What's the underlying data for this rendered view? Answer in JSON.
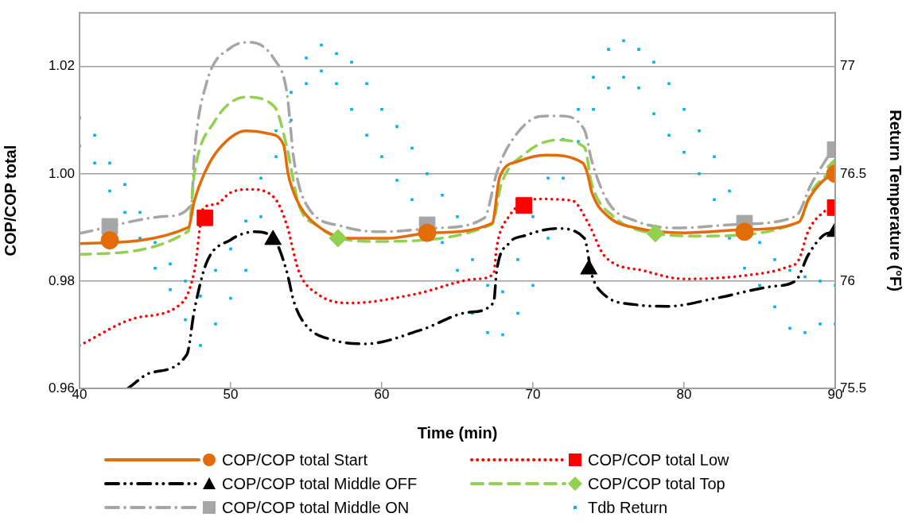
{
  "chart_data": {
    "type": "line",
    "xlabel": "Time (min)",
    "ylabel": "COP/COP total",
    "y2label": "Return Temperature (°F)",
    "xlim": [
      40,
      90
    ],
    "xticks": [
      40,
      50,
      60,
      70,
      80,
      90
    ],
    "ylim": [
      0.96,
      1.03
    ],
    "yticks": [
      0.96,
      0.98,
      {
        "value": 1,
        "label": "1.00"
      },
      1.02
    ],
    "y2lim": [
      75.5,
      77.25
    ],
    "y2ticks": [
      75.5,
      76,
      76.5,
      77
    ],
    "grid": "y",
    "legend": "bottom",
    "series": [
      {
        "name": "COP/COP total Start",
        "type": "line",
        "color": "#e36c09",
        "line_style": "solid",
        "marker": "none",
        "x": [
          40,
          47.2,
          47.6,
          48.5,
          49.5,
          51,
          52.5,
          53.5,
          53.8,
          54.4,
          55.3,
          57.9,
          60.5,
          63.2,
          67.3,
          67.8,
          69,
          70.9,
          73.3,
          73.6,
          73.9,
          75,
          77,
          80,
          84,
          87.6,
          88.2,
          89.2,
          89.9
        ],
        "values": [
          0.987,
          0.99,
          0.995,
          1.0015,
          1.0055,
          1.008,
          1.0075,
          1.0054,
          1.0,
          0.995,
          0.9914,
          0.988,
          0.988,
          0.989,
          0.9908,
          0.9994,
          1.0023,
          1.0035,
          1.002,
          1.0001,
          0.9965,
          0.992,
          0.9898,
          0.989,
          0.9896,
          0.991,
          0.995,
          0.9987,
          1.0
        ]
      },
      {
        "name": "COP/COP total Low",
        "type": "line",
        "color": "#ff0000",
        "line_style": "dotted",
        "marker": "none",
        "x": [
          40,
          43.7,
          46.8,
          47.6,
          48.2,
          49,
          50,
          51.3,
          52.9,
          53.7,
          54.5,
          55.8,
          57.9,
          62.1,
          66.3,
          67.4,
          67.6,
          68.4,
          70.5,
          72.6,
          73.7,
          74.7,
          77.4,
          80,
          84.2,
          86.8,
          87.6,
          88.2,
          89.2,
          89.9
        ],
        "values": [
          0.968,
          0.9731,
          0.976,
          0.9819,
          0.9936,
          0.9943,
          0.9965,
          0.9971,
          0.9955,
          0.9906,
          0.9819,
          0.9775,
          0.9759,
          0.9775,
          0.9804,
          0.9814,
          0.9863,
          0.992,
          0.9953,
          0.995,
          0.9906,
          0.9848,
          0.9819,
          0.9804,
          0.9811,
          0.9826,
          0.984,
          0.9892,
          0.9928,
          0.9937
        ]
      },
      {
        "name": "COP/COP total Middle OFF",
        "type": "line",
        "color": "#000000",
        "line_style": "dashdotdot",
        "marker": "none",
        "x": [
          43.2,
          44.7,
          47.1,
          47.6,
          48.4,
          50,
          51.6,
          52.9,
          53.7,
          54.2,
          55,
          56.8,
          58.9,
          62.6,
          65.8,
          67.4,
          67.6,
          68.4,
          69.5,
          71.6,
          73.4,
          73.9,
          74.7,
          76.8,
          78.9,
          82.1,
          85.8,
          87.4,
          88.2,
          89.2,
          89.9
        ],
        "values": [
          0.96,
          0.9629,
          0.9663,
          0.9746,
          0.9834,
          0.9877,
          0.9892,
          0.9877,
          0.9819,
          0.976,
          0.9717,
          0.969,
          0.9683,
          0.9709,
          0.9742,
          0.976,
          0.9819,
          0.987,
          0.9885,
          0.9898,
          0.988,
          0.9811,
          0.9775,
          0.9756,
          0.9753,
          0.9768,
          0.979,
          0.9801,
          0.9848,
          0.9885,
          0.9892
        ]
      },
      {
        "name": "COP/COP total Top",
        "type": "line",
        "color": "#92d050",
        "line_style": "dashed",
        "marker": "none",
        "x": [
          40,
          47.2,
          47.6,
          48.9,
          51,
          52.9,
          53.7,
          54.5,
          55.8,
          57.2,
          59.5,
          67.3,
          67.9,
          69.5,
          71.6,
          73.4,
          73.9,
          75.3,
          78,
          81.1,
          87.6,
          88.4,
          89.9
        ],
        "values": [
          0.985,
          0.9893,
          1.0001,
          1.0096,
          1.0143,
          1.0125,
          1.0052,
          0.9943,
          0.9902,
          0.988,
          0.9874,
          0.9906,
          0.998,
          1.0038,
          1.0063,
          1.005,
          0.998,
          0.9921,
          0.9889,
          0.9884,
          0.991,
          0.9965,
          1.0009
        ]
      },
      {
        "name": "COP/COP total Middle ON",
        "type": "line",
        "color": "#a6a6a6",
        "line_style": "dashdot",
        "marker": "none",
        "x": [
          40,
          45.8,
          47.4,
          47.6,
          48.4,
          50,
          51.3,
          52.9,
          53.7,
          54.2,
          55,
          57.4,
          60,
          63.7,
          66.8,
          67.6,
          68.4,
          70.5,
          71.8,
          73.4,
          73.9,
          75,
          76.8,
          79.5,
          83.7,
          87.4,
          88.4,
          89.7
        ],
        "values": [
          0.9889,
          0.9921,
          0.9943,
          1.0038,
          1.0169,
          1.0235,
          1.0245,
          1.0213,
          1.0155,
          1.0023,
          0.9943,
          0.9902,
          0.9892,
          0.9899,
          0.9918,
          1.0001,
          1.0053,
          1.0107,
          1.0108,
          1.0082,
          1.0023,
          0.9946,
          0.9912,
          0.9899,
          0.9906,
          0.9921,
          0.998,
          1.004
        ]
      },
      {
        "type": "scatter",
        "axis": "y2",
        "name": "Tdb Return",
        "color": "#00b0f0",
        "marker": "square",
        "x": [
          40,
          40,
          41,
          41,
          42,
          42,
          43,
          43,
          44,
          44,
          45,
          45,
          46,
          46,
          47,
          47,
          48,
          48,
          49,
          49,
          50,
          50,
          51,
          51,
          52,
          52,
          53,
          53,
          54,
          54,
          55,
          55,
          56,
          56,
          57,
          57,
          58,
          58,
          59,
          59,
          60,
          60,
          61,
          61,
          62,
          62,
          63,
          64,
          64,
          65,
          65,
          66,
          66,
          67,
          67,
          68,
          68,
          69,
          69,
          70,
          70,
          71,
          71,
          72,
          72,
          73,
          73,
          74,
          74,
          75,
          75,
          76,
          76,
          77,
          77,
          78,
          78,
          79,
          79,
          80,
          80,
          81,
          81,
          82,
          82,
          83,
          83,
          84,
          85,
          85,
          86,
          86,
          87,
          87,
          88,
          88,
          89,
          89,
          90,
          90
        ],
        "values": [
          76.63,
          76.76,
          76.55,
          76.68,
          76.42,
          76.55,
          76.32,
          76.45,
          76.2,
          76.32,
          76.06,
          76.18,
          75.96,
          76.08,
          75.82,
          76.0,
          75.7,
          75.93,
          75.8,
          76.05,
          75.92,
          76.15,
          76.05,
          76.28,
          76.3,
          76.48,
          76.58,
          76.7,
          76.75,
          76.88,
          76.92,
          77.04,
          76.98,
          77.1,
          76.92,
          77.06,
          76.8,
          77.02,
          76.68,
          76.92,
          76.58,
          76.8,
          76.47,
          76.72,
          76.38,
          76.62,
          76.5,
          76.18,
          76.4,
          76.05,
          76.3,
          75.85,
          76.1,
          75.76,
          75.98,
          75.75,
          75.95,
          75.85,
          76.1,
          75.98,
          76.3,
          76.2,
          76.48,
          76.48,
          76.66,
          76.65,
          76.8,
          76.8,
          76.95,
          76.9,
          77.08,
          76.95,
          77.12,
          76.9,
          77.08,
          76.78,
          77.02,
          76.68,
          76.92,
          76.6,
          76.8,
          76.5,
          76.7,
          76.38,
          76.58,
          76.2,
          76.42,
          76.06,
          75.98,
          76.18,
          75.88,
          76.1,
          75.78,
          76.05,
          75.76,
          76.02,
          75.8,
          76.0,
          75.8,
          75.98
        ]
      },
      {
        "type": "scatter",
        "color": "#e36c09",
        "marker": "circle",
        "x": [
          42,
          63,
          84,
          90
        ],
        "values": [
          0.9876,
          0.989,
          0.9892,
          1.0
        ]
      },
      {
        "type": "scatter",
        "color": "#ff0000",
        "marker": "square",
        "x": [
          48.3,
          69.4,
          90
        ],
        "values": [
          0.9918,
          0.9941,
          0.9937
        ]
      },
      {
        "type": "scatter",
        "color": "#000000",
        "marker": "triangle",
        "x": [
          52.8,
          73.7,
          90
        ],
        "values": [
          0.9877,
          0.9822,
          0.9892
        ]
      },
      {
        "type": "scatter",
        "color": "#92d050",
        "marker": "diamond",
        "x": [
          57.1,
          78.1,
          90
        ],
        "values": [
          0.988,
          0.9889,
          1.0013
        ]
      },
      {
        "type": "scatter",
        "color": "#a6a6a6",
        "marker": "square",
        "x": [
          42,
          63,
          84,
          90
        ],
        "values": [
          0.9902,
          0.9905,
          0.9908,
          1.0045
        ]
      }
    ]
  }
}
